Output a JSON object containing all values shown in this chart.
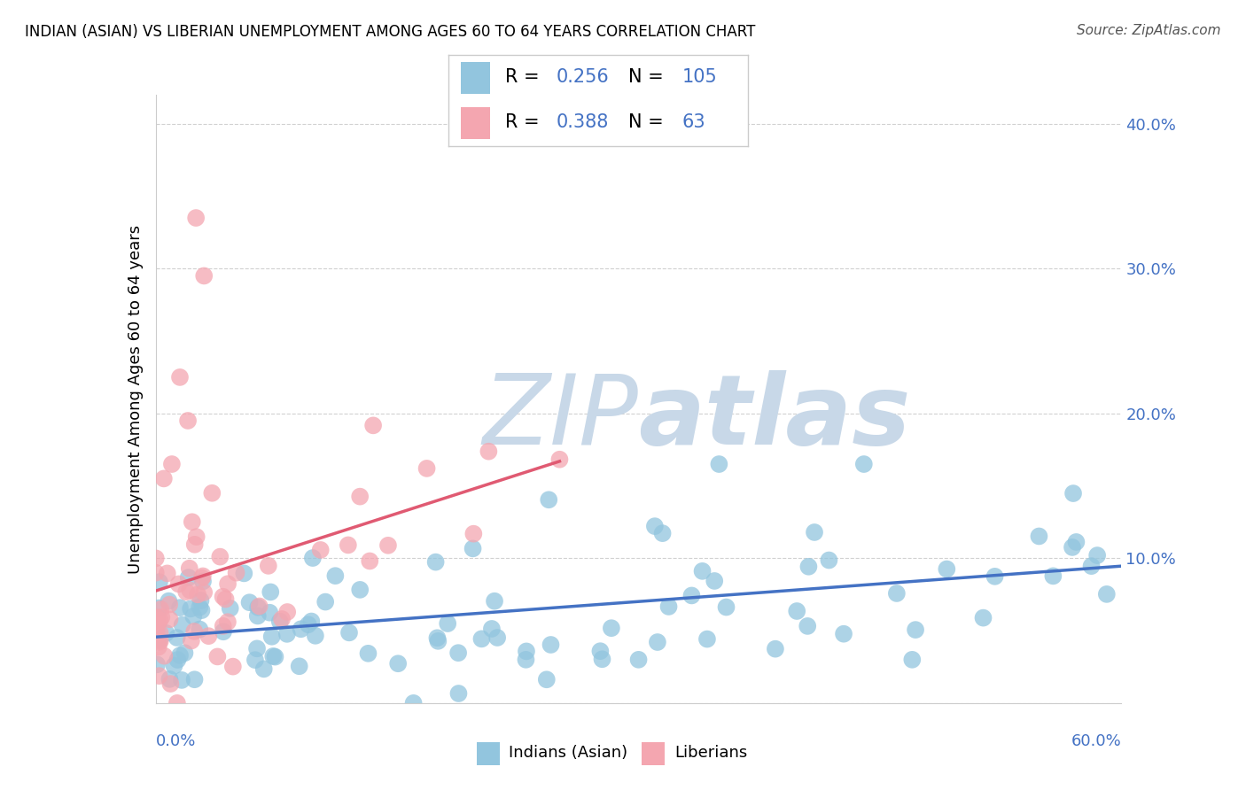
{
  "title": "INDIAN (ASIAN) VS LIBERIAN UNEMPLOYMENT AMONG AGES 60 TO 64 YEARS CORRELATION CHART",
  "source": "Source: ZipAtlas.com",
  "ylabel": "Unemployment Among Ages 60 to 64 years",
  "xlim": [
    0.0,
    0.6
  ],
  "ylim": [
    0.0,
    0.42
  ],
  "r_indian": 0.256,
  "n_indian": 105,
  "r_liberian": 0.388,
  "n_liberian": 63,
  "indian_color": "#92c5de",
  "liberian_color": "#f4a6b0",
  "indian_line_color": "#4472c4",
  "liberian_line_color": "#e05a72",
  "watermark_zip": "ZIP",
  "watermark_atlas": "atlas",
  "watermark_color": "#c8d8e8",
  "background_color": "#ffffff",
  "grid_color": "#cccccc",
  "ytick_color": "#4472c4",
  "xlabel_color": "#4472c4",
  "legend_text_color": "#4472c4"
}
